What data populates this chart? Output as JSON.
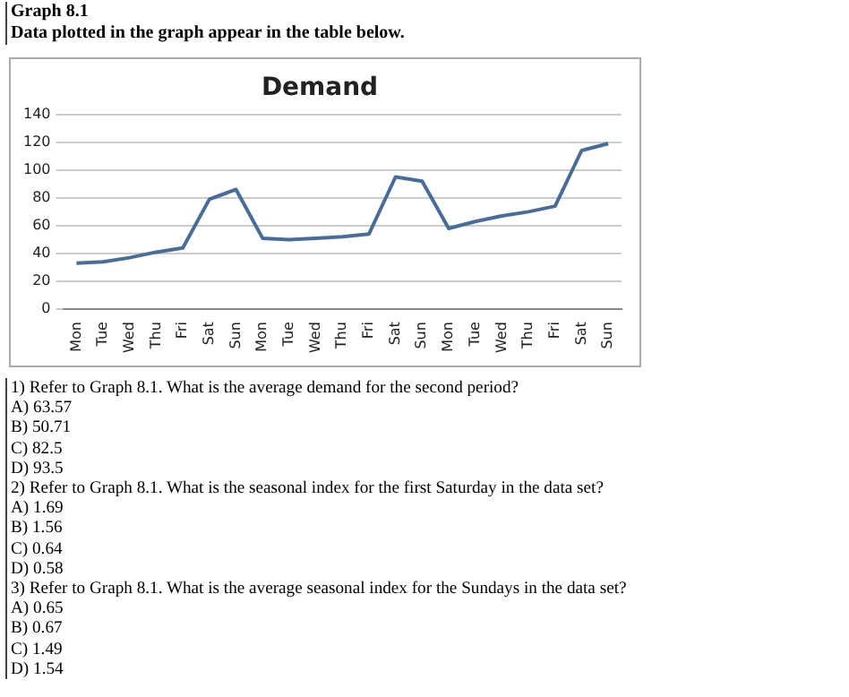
{
  "chart_data": {
    "type": "line",
    "title": "Demand",
    "categories": [
      "Mon",
      "Tue",
      "Wed",
      "Thu",
      "Fri",
      "Sat",
      "Sun",
      "Mon",
      "Tue",
      "Wed",
      "Thu",
      "Fri",
      "Sat",
      "Sun",
      "Mon",
      "Tue",
      "Wed",
      "Thu",
      "Fri",
      "Sat",
      "Sun"
    ],
    "series": [
      {
        "color": "#4a6d96",
        "values": [
          33,
          34,
          37,
          41,
          44,
          79,
          86,
          51,
          50,
          51,
          52,
          54,
          95,
          92,
          58,
          63,
          67,
          70,
          74,
          114,
          119
        ]
      }
    ],
    "ylim": [
      0,
      140
    ],
    "yticks": [
      0,
      20,
      40,
      60,
      80,
      100,
      120,
      140
    ],
    "grid": "y",
    "marker": "none",
    "line_style": "solid",
    "annotations": [
      "Graph 8.1",
      "Data plotted in the graph appear in the table below.",
      "1) Refer to Graph 8.1. What is the average demand for the second period?",
      "A) 63.57",
      "B) 50.71",
      "C) 82.5",
      "D) 93.5",
      "2) Refer to Graph 8.1. What is the seasonal index for the first Saturday in the data set?",
      "A) 1.69",
      "B) 1.56",
      "C) 0.64",
      "D) 0.58",
      "3) Refer to Graph 8.1. What is the average seasonal index for the Sundays in the data set?",
      "A) 0.65",
      "B) 0.67",
      "C) 1.49",
      "D) 1.54"
    ]
  }
}
